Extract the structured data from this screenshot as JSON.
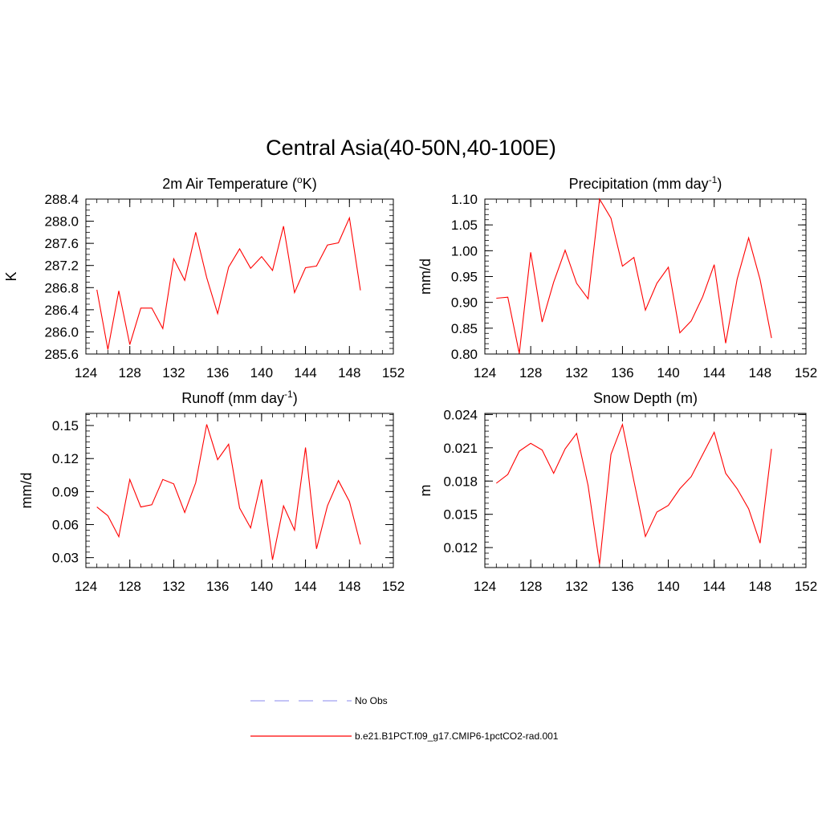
{
  "figure": {
    "title": "Central Asia(40-50N,40-100E)"
  },
  "colors": {
    "model_line": "#ff0000",
    "obs_line": "#a0a0f0",
    "axis": "#000000"
  },
  "legend": {
    "entries": [
      {
        "label": "No Obs",
        "style": "dashed",
        "color": "#a0a0f0"
      },
      {
        "label": "b.e21.B1PCT.f09_g17.CMIP6-1pctCO2-rad.001",
        "style": "solid",
        "color": "#ff0000"
      }
    ]
  },
  "chart_data": [
    {
      "type": "line",
      "title": "2m Air Temperature (",
      "title_sup": "o",
      "title_post": "K)",
      "ylabel": "K",
      "xlim": [
        124,
        152
      ],
      "ylim": [
        285.6,
        288.4
      ],
      "xticks": [
        124,
        128,
        132,
        136,
        140,
        144,
        148,
        152
      ],
      "yticks": [
        285.6,
        286.0,
        286.4,
        286.8,
        287.2,
        287.6,
        288.0,
        288.4
      ],
      "ytick_labels": [
        "285.6",
        "286.0",
        "286.4",
        "286.8",
        "287.2",
        "287.6",
        "288.0",
        "288.4"
      ],
      "x_minor_step": 1,
      "y_minor_step": 0.1,
      "x": [
        125,
        126,
        127,
        128,
        129,
        130,
        131,
        132,
        133,
        134,
        135,
        136,
        137,
        138,
        139,
        140,
        141,
        142,
        143,
        144,
        145,
        146,
        147,
        148,
        149
      ],
      "y": [
        286.76,
        285.68,
        286.74,
        285.77,
        286.43,
        286.43,
        286.06,
        287.32,
        286.93,
        287.8,
        286.98,
        286.33,
        287.17,
        287.5,
        287.15,
        287.36,
        287.11,
        287.91,
        286.71,
        287.16,
        287.19,
        287.57,
        287.61,
        288.06,
        286.75
      ]
    },
    {
      "type": "line",
      "title": "Precipitation (mm day",
      "title_sup": "-1",
      "title_post": ")",
      "ylabel": "mm/d",
      "xlim": [
        124,
        152
      ],
      "ylim": [
        0.8,
        1.1
      ],
      "xticks": [
        124,
        128,
        132,
        136,
        140,
        144,
        148,
        152
      ],
      "yticks": [
        0.8,
        0.85,
        0.9,
        0.95,
        1.0,
        1.05,
        1.1
      ],
      "ytick_labels": [
        "0.80",
        "0.85",
        "0.90",
        "0.95",
        "1.00",
        "1.05",
        "1.10"
      ],
      "x_minor_step": 1,
      "y_minor_step": 0.01,
      "x": [
        125,
        126,
        127,
        128,
        129,
        130,
        131,
        132,
        133,
        134,
        135,
        136,
        137,
        138,
        139,
        140,
        141,
        142,
        143,
        144,
        145,
        146,
        147,
        148,
        149
      ],
      "y": [
        0.908,
        0.91,
        0.801,
        0.997,
        0.862,
        0.939,
        1.001,
        0.937,
        0.907,
        1.1,
        1.063,
        0.97,
        0.987,
        0.885,
        0.937,
        0.968,
        0.841,
        0.864,
        0.911,
        0.973,
        0.821,
        0.945,
        1.025,
        0.944,
        0.831
      ]
    },
    {
      "type": "line",
      "title": "Runoff (mm day",
      "title_sup": "-1",
      "title_post": ")",
      "ylabel": "mm/d",
      "xlim": [
        124,
        152
      ],
      "ylim": [
        0.021,
        0.161
      ],
      "xticks": [
        124,
        128,
        132,
        136,
        140,
        144,
        148,
        152
      ],
      "yticks": [
        0.03,
        0.06,
        0.09,
        0.12,
        0.15
      ],
      "ytick_labels": [
        "0.03",
        "0.06",
        "0.09",
        "0.12",
        "0.15"
      ],
      "x_minor_step": 1,
      "y_minor_step": 0.005,
      "x": [
        125,
        126,
        127,
        128,
        129,
        130,
        131,
        132,
        133,
        134,
        135,
        136,
        137,
        138,
        139,
        140,
        141,
        142,
        143,
        144,
        145,
        146,
        147,
        148,
        149
      ],
      "y": [
        0.076,
        0.068,
        0.049,
        0.101,
        0.076,
        0.078,
        0.101,
        0.097,
        0.071,
        0.098,
        0.151,
        0.119,
        0.133,
        0.075,
        0.057,
        0.101,
        0.028,
        0.077,
        0.055,
        0.13,
        0.038,
        0.077,
        0.1,
        0.081,
        0.042
      ]
    },
    {
      "type": "line",
      "title": "Snow Depth (m)",
      "title_sup": "",
      "title_post": "",
      "ylabel": "m",
      "xlim": [
        124,
        152
      ],
      "ylim": [
        0.0102,
        0.0241
      ],
      "xticks": [
        124,
        128,
        132,
        136,
        140,
        144,
        148,
        152
      ],
      "yticks": [
        0.012,
        0.015,
        0.018,
        0.021,
        0.024
      ],
      "ytick_labels": [
        "0.012",
        "0.015",
        "0.018",
        "0.021",
        "0.024"
      ],
      "x_minor_step": 1,
      "y_minor_step": 0.0005,
      "x": [
        125,
        126,
        127,
        128,
        129,
        130,
        131,
        132,
        133,
        134,
        135,
        136,
        137,
        138,
        139,
        140,
        141,
        142,
        143,
        144,
        145,
        146,
        147,
        148,
        149
      ],
      "y": [
        0.0178,
        0.0186,
        0.0207,
        0.0214,
        0.0208,
        0.0187,
        0.0209,
        0.0223,
        0.0176,
        0.0105,
        0.0204,
        0.0231,
        0.018,
        0.013,
        0.0152,
        0.0158,
        0.0173,
        0.0184,
        0.0204,
        0.0224,
        0.0187,
        0.0173,
        0.0155,
        0.0124,
        0.0209
      ]
    }
  ]
}
